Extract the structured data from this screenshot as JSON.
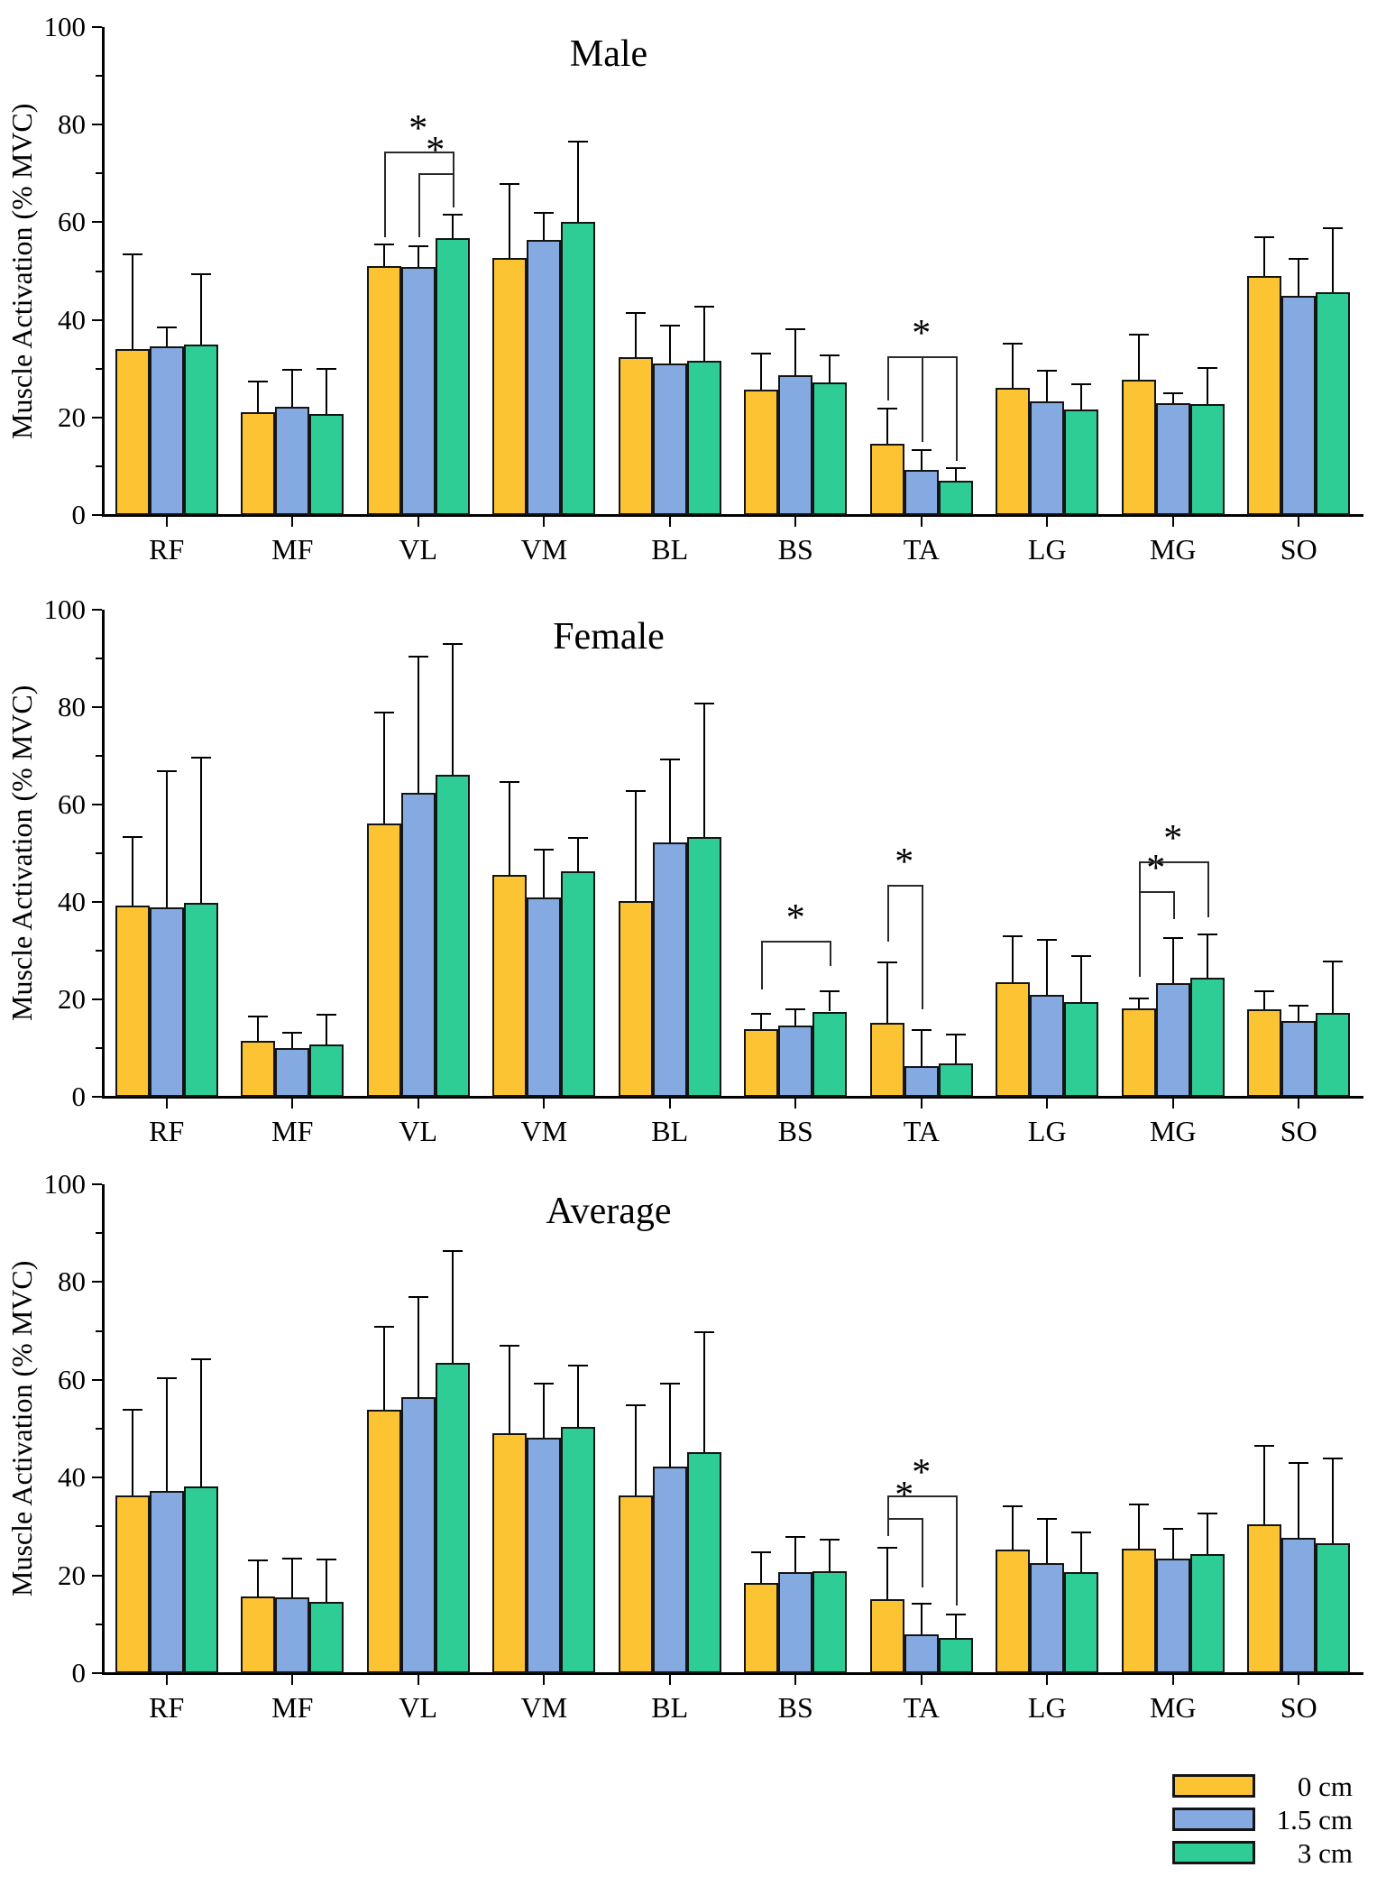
{
  "chart_data": [
    {
      "type": "bar",
      "title": "Male",
      "ylabel": "Muscle Activation (% MVC)",
      "ylim": [
        0,
        100
      ],
      "y_ticks": [
        0,
        20,
        40,
        60,
        80,
        100
      ],
      "y_minor_step": 10,
      "grid": false,
      "categories": [
        "RF",
        "MF",
        "VL",
        "VM",
        "BL",
        "BS",
        "TA",
        "LG",
        "MG",
        "SO"
      ],
      "series": [
        {
          "name": "0 cm",
          "color": "#FCC433",
          "values": [
            34.0,
            21.1,
            51.0,
            52.7,
            32.3,
            25.7,
            14.6,
            26.1,
            27.7,
            49.0
          ]
        },
        {
          "name": "1.5 cm",
          "color": "#85AAE2",
          "values": [
            34.6,
            22.2,
            50.8,
            56.4,
            31.0,
            28.7,
            9.2,
            23.3,
            22.9,
            44.9
          ]
        },
        {
          "name": "3 cm",
          "color": "#2FCD96",
          "values": [
            34.9,
            20.7,
            56.7,
            60.1,
            31.6,
            27.2,
            7.0,
            21.6,
            22.7,
            45.7
          ]
        }
      ],
      "errors_plus": [
        [
          19.6,
          6.4,
          4.6,
          15.3,
          9.3,
          7.6,
          7.4,
          9.2,
          9.5,
          8.1
        ],
        [
          4.0,
          7.7,
          4.5,
          5.7,
          8.0,
          9.6,
          4.3,
          6.5,
          2.2,
          7.8
        ],
        [
          14.6,
          9.4,
          5.0,
          16.6,
          11.3,
          5.7,
          2.8,
          5.4,
          7.6,
          13.3
        ]
      ],
      "significance_brackets": [
        {
          "category": "VL",
          "label": "*",
          "top": 74.5,
          "legs": [
            [
              0,
              57.0
            ],
            [
              2,
              66.0
            ]
          ]
        },
        {
          "category": "VL",
          "label": "*",
          "top": 70.0,
          "legs": [
            [
              1,
              57.0
            ],
            [
              2,
              63.0
            ]
          ]
        },
        {
          "category": "TA",
          "label": "*",
          "top": 32.5,
          "legs": [
            [
              0,
              23.5
            ],
            [
              1,
              15.0
            ],
            [
              2,
              11.0
            ]
          ]
        }
      ]
    },
    {
      "type": "bar",
      "title": "Female",
      "ylabel": "Muscle Activation (% MVC)",
      "ylim": [
        0,
        100
      ],
      "y_ticks": [
        0,
        20,
        40,
        60,
        80,
        100
      ],
      "y_minor_step": 10,
      "grid": false,
      "categories": [
        "RF",
        "MF",
        "VL",
        "VM",
        "BL",
        "BS",
        "TA",
        "LG",
        "MG",
        "SO"
      ],
      "series": [
        {
          "name": "0 cm",
          "color": "#FCC433",
          "values": [
            39.2,
            11.5,
            56.1,
            45.6,
            40.2,
            13.8,
            15.1,
            23.6,
            18.1,
            17.9
          ]
        },
        {
          "name": "1.5 cm",
          "color": "#85AAE2",
          "values": [
            38.8,
            10.0,
            62.4,
            40.9,
            52.2,
            14.7,
            6.3,
            21.0,
            23.3,
            15.5
          ]
        },
        {
          "name": "3 cm",
          "color": "#2FCD96",
          "values": [
            39.9,
            10.8,
            66.2,
            46.3,
            53.4,
            17.5,
            6.9,
            19.4,
            24.4,
            17.3
          ]
        }
      ],
      "errors_plus": [
        [
          14.3,
          5.1,
          22.9,
          19.2,
          22.7,
          3.5,
          12.6,
          9.5,
          2.2,
          3.9
        ],
        [
          28.3,
          3.4,
          28.2,
          10.1,
          17.3,
          3.5,
          7.5,
          11.4,
          9.5,
          3.3
        ],
        [
          30.0,
          6.3,
          27.0,
          7.1,
          27.5,
          4.3,
          6.0,
          9.6,
          9.1,
          10.6
        ]
      ],
      "significance_brackets": [
        {
          "category": "BS",
          "label": "*",
          "top": 32.0,
          "legs": [
            [
              0,
              22.0
            ],
            [
              2,
              26.8
            ]
          ]
        },
        {
          "category": "TA",
          "label": "*",
          "top": 43.5,
          "legs": [
            [
              0,
              31.8
            ],
            [
              1,
              17.9
            ]
          ]
        },
        {
          "category": "MG",
          "label": "*",
          "top": 42.3,
          "legs": [
            [
              0,
              24.6
            ],
            [
              1,
              36.5
            ]
          ]
        },
        {
          "category": "MG",
          "label": "*",
          "top": 48.4,
          "legs": [
            [
              0,
              24.6
            ],
            [
              2,
              36.9
            ]
          ]
        }
      ]
    },
    {
      "type": "bar",
      "title": "Average",
      "ylabel": "Muscle Activation (% MVC)",
      "ylim": [
        0,
        100
      ],
      "y_ticks": [
        0,
        20,
        40,
        60,
        80,
        100
      ],
      "y_minor_step": 10,
      "grid": false,
      "categories": [
        "RF",
        "MF",
        "VL",
        "VM",
        "BL",
        "BS",
        "TA",
        "LG",
        "MG",
        "SO"
      ],
      "series": [
        {
          "name": "0 cm",
          "color": "#FCC433",
          "values": [
            36.4,
            15.7,
            53.9,
            49.1,
            36.4,
            18.5,
            15.1,
            25.2,
            25.5,
            30.4
          ]
        },
        {
          "name": "1.5 cm",
          "color": "#85AAE2",
          "values": [
            37.3,
            15.5,
            56.5,
            48.2,
            42.3,
            20.6,
            8.0,
            22.6,
            23.5,
            27.7
          ]
        },
        {
          "name": "3 cm",
          "color": "#2FCD96",
          "values": [
            38.2,
            14.6,
            63.5,
            50.4,
            45.2,
            20.8,
            7.2,
            20.6,
            24.3,
            26.6
          ]
        }
      ],
      "errors_plus": [
        [
          17.7,
          7.5,
          17.2,
          18.1,
          18.6,
          6.4,
          10.7,
          9.2,
          9.1,
          16.3
        ],
        [
          23.3,
          8.1,
          20.7,
          11.2,
          17.1,
          7.4,
          6.3,
          9.2,
          6.2,
          15.5
        ],
        [
          26.1,
          8.8,
          23.1,
          12.7,
          24.8,
          6.6,
          4.9,
          8.3,
          8.6,
          17.5
        ]
      ],
      "significance_brackets": [
        {
          "category": "TA",
          "label": "*",
          "top": 31.7,
          "legs": [
            [
              0,
              28.0
            ],
            [
              1,
              17.5
            ]
          ]
        },
        {
          "category": "TA",
          "label": "*",
          "top": 36.3,
          "legs": [
            [
              0,
              28.0
            ],
            [
              2,
              13.8
            ]
          ]
        }
      ]
    }
  ],
  "legend": {
    "items": [
      {
        "label": "0 cm",
        "color": "#FCC433"
      },
      {
        "label": "1.5 cm",
        "color": "#85AAE2"
      },
      {
        "label": "3 cm",
        "color": "#2FCD96"
      }
    ]
  }
}
